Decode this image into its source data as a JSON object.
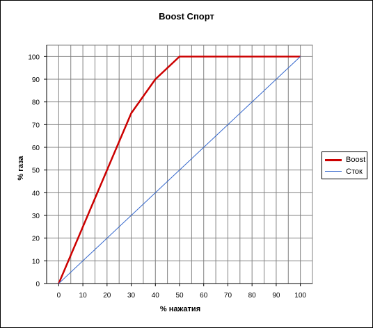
{
  "chart_data": {
    "type": "line",
    "title": "Boost Спорт",
    "xlabel": "% нажатия",
    "ylabel": "% газа",
    "xlim": [
      0,
      100
    ],
    "ylim": [
      0,
      100
    ],
    "x_ticks": [
      "0",
      "10",
      "20",
      "30",
      "40",
      "50",
      "60",
      "70",
      "80",
      "90",
      "100"
    ],
    "y_ticks": [
      "0",
      "10",
      "20",
      "30",
      "40",
      "50",
      "60",
      "70",
      "80",
      "90",
      "100"
    ],
    "grid": true,
    "legend_position": "right",
    "series": [
      {
        "name": "Boost",
        "color": "#cc0000",
        "x": [
          0,
          20,
          30,
          40,
          50,
          100
        ],
        "y": [
          0,
          50,
          75,
          90,
          100,
          100
        ]
      },
      {
        "name": "Сток",
        "color": "#3366cc",
        "x": [
          0,
          100
        ],
        "y": [
          0,
          100
        ]
      }
    ]
  }
}
